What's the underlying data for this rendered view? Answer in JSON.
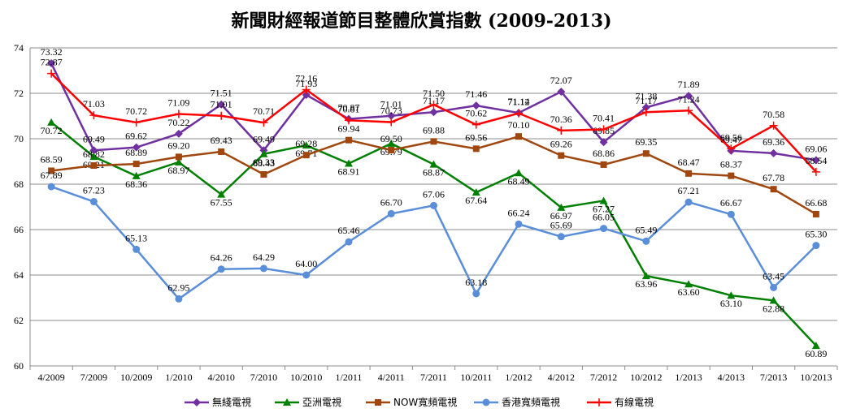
{
  "chart_data": {
    "type": "line",
    "title": "新聞財經報道節目整體欣賞指數 (2009-2013)",
    "categories": [
      "4/2009",
      "7/2009",
      "10/2009",
      "1/2010",
      "4/2010",
      "7/2010",
      "10/2010",
      "1/2011",
      "4/2011",
      "7/2011",
      "10/2011",
      "1/2012",
      "4/2012",
      "7/2012",
      "10/2012",
      "1/2013",
      "4/2013",
      "7/2013",
      "10/2013"
    ],
    "ylim": [
      60,
      74
    ],
    "yticks": [
      60,
      62,
      64,
      66,
      68,
      70,
      72,
      74
    ],
    "grid": true,
    "legend_position": "bottom",
    "series": [
      {
        "name": "無綫電視",
        "color": "#7030A0",
        "marker": "diamond",
        "values": [
          73.32,
          69.49,
          69.62,
          70.22,
          71.51,
          69.49,
          71.93,
          70.87,
          71.01,
          71.17,
          71.46,
          71.14,
          72.07,
          69.85,
          71.38,
          71.89,
          69.47,
          69.36,
          69.06
        ]
      },
      {
        "name": "亞洲電視",
        "color": "#008000",
        "marker": "triangle",
        "values": [
          70.72,
          69.21,
          68.36,
          68.97,
          67.55,
          69.33,
          69.71,
          68.91,
          69.79,
          68.87,
          67.64,
          68.49,
          66.97,
          67.27,
          63.96,
          63.6,
          63.1,
          62.88,
          60.89
        ]
      },
      {
        "name": "NOW寬頻電視",
        "color": "#A0460F",
        "marker": "square",
        "values": [
          68.59,
          68.82,
          68.89,
          69.2,
          69.43,
          68.43,
          69.28,
          69.94,
          69.5,
          69.88,
          69.56,
          70.1,
          69.26,
          68.86,
          69.35,
          68.47,
          68.37,
          67.78,
          66.68
        ]
      },
      {
        "name": "香港寬頻電視",
        "color": "#5B8ED9",
        "marker": "circle",
        "values": [
          67.89,
          67.23,
          65.13,
          62.95,
          64.26,
          64.29,
          64.0,
          65.46,
          66.7,
          67.06,
          63.18,
          66.24,
          65.69,
          66.05,
          65.49,
          67.21,
          66.67,
          63.45,
          65.3
        ]
      },
      {
        "name": "有線電視",
        "color": "#FF0000",
        "marker": "plus",
        "values": [
          72.87,
          71.03,
          70.72,
          71.09,
          71.01,
          70.71,
          72.16,
          70.81,
          70.73,
          71.5,
          70.62,
          71.12,
          70.36,
          70.41,
          71.17,
          71.24,
          69.56,
          70.58,
          68.54
        ]
      }
    ]
  }
}
